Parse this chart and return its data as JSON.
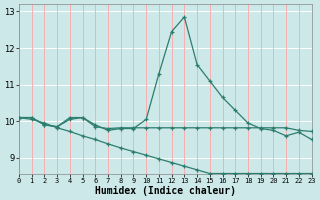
{
  "xlabel": "Humidex (Indice chaleur)",
  "bg_color": "#cce8e8",
  "line_color": "#2d7d6e",
  "grid_color_h": "#ffffff",
  "grid_color_v": "#f5b0b0",
  "xlim": [
    0,
    23
  ],
  "ylim": [
    8.55,
    13.2
  ],
  "yticks": [
    9,
    10,
    11,
    12,
    13
  ],
  "xticks": [
    0,
    1,
    2,
    3,
    4,
    5,
    6,
    7,
    8,
    9,
    10,
    11,
    12,
    13,
    14,
    15,
    16,
    17,
    18,
    19,
    20,
    21,
    22,
    23
  ],
  "line1_x": [
    0,
    1,
    2,
    3,
    4,
    5,
    6,
    7,
    8,
    9,
    10,
    11,
    12,
    13,
    14,
    15,
    16,
    17,
    18,
    19,
    20,
    21,
    22,
    23
  ],
  "line1_y": [
    10.1,
    10.1,
    9.9,
    9.85,
    10.05,
    10.1,
    9.9,
    9.75,
    9.8,
    9.8,
    10.05,
    11.3,
    12.45,
    12.85,
    11.55,
    11.1,
    10.65,
    10.3,
    9.95,
    9.8,
    9.75,
    9.6,
    9.7,
    9.5
  ],
  "line2_x": [
    0,
    1,
    2,
    3,
    4,
    5,
    6,
    7,
    8,
    9,
    10,
    11,
    12,
    13,
    14,
    15,
    16,
    17,
    18,
    19,
    20,
    21,
    22,
    23
  ],
  "line2_y": [
    10.1,
    10.1,
    9.9,
    9.85,
    10.1,
    10.1,
    9.85,
    9.8,
    9.82,
    9.82,
    9.82,
    9.82,
    9.82,
    9.82,
    9.82,
    9.82,
    9.82,
    9.82,
    9.82,
    9.82,
    9.82,
    9.82,
    9.75,
    9.72
  ],
  "line3_x": [
    0,
    1,
    2,
    3,
    4,
    5,
    6,
    7,
    8,
    9,
    10,
    11,
    12,
    13,
    14,
    15,
    16,
    17,
    18,
    19,
    20,
    21,
    22,
    23
  ],
  "line3_y": [
    10.1,
    10.05,
    9.95,
    9.82,
    9.72,
    9.6,
    9.5,
    9.38,
    9.27,
    9.17,
    9.07,
    8.97,
    8.87,
    8.77,
    8.67,
    8.57,
    8.57,
    8.57,
    8.57,
    8.57,
    8.57,
    8.57,
    8.57,
    8.57
  ]
}
